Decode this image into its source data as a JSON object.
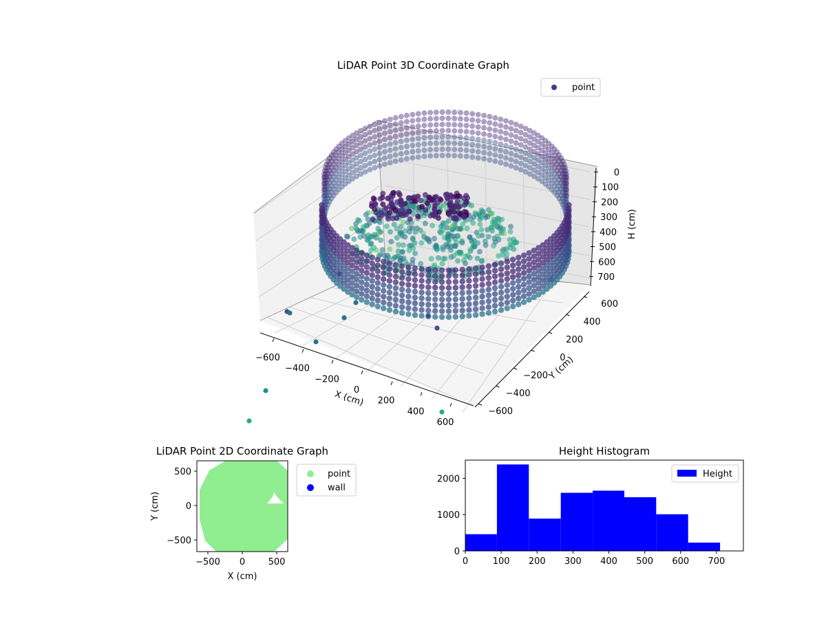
{
  "chart_data": [
    {
      "type": "scatter3d",
      "title": "LiDAR Point 3D Coordinate Graph",
      "xlabel": "X (cm)",
      "ylabel": "Y (cm)",
      "zlabel": "H (cm)",
      "xticks": [
        "−600",
        "−400",
        "−200",
        "0",
        "200",
        "400",
        "600"
      ],
      "yticks": [
        "−600",
        "−400",
        "−200",
        "0",
        "200",
        "400",
        "600"
      ],
      "zticks": [
        "0",
        "100",
        "200",
        "300",
        "400",
        "500",
        "600",
        "700"
      ],
      "xlim": [
        -650,
        650
      ],
      "ylim": [
        -650,
        650
      ],
      "zlim": [
        0,
        750
      ],
      "z_axis_inverted": true,
      "legend": [
        "point"
      ],
      "legend_position": "top-right",
      "colormap": "viridis",
      "point_color": "#443983",
      "grid": true
    },
    {
      "type": "scatter",
      "title": "LiDAR Point 2D Coordinate Graph",
      "xlabel": "X (cm)",
      "ylabel": "Y (cm)",
      "xticks": [
        "−500",
        "0",
        "500"
      ],
      "yticks": [
        "500",
        "0",
        "−500"
      ],
      "xlim": [
        -650,
        650
      ],
      "ylim": [
        -650,
        650
      ],
      "series": [
        {
          "name": "point",
          "color": "#90ee90"
        },
        {
          "name": "wall",
          "color": "#0000ff"
        }
      ],
      "legend_position": "outside-right"
    },
    {
      "type": "bar",
      "title": "Height Histogram",
      "legend": [
        "Height"
      ],
      "legend_position": "top-right",
      "color": "#0000ff",
      "xticks": [
        "0",
        "100",
        "200",
        "300",
        "400",
        "500",
        "600",
        "700"
      ],
      "yticks": [
        "0",
        "1000",
        "2000"
      ],
      "xlim": [
        0,
        775
      ],
      "ylim": [
        0,
        2500
      ],
      "bins": [
        {
          "x0": 0,
          "x1": 88,
          "count": 460
        },
        {
          "x0": 88,
          "x1": 177,
          "count": 2380
        },
        {
          "x0": 177,
          "x1": 266,
          "count": 890
        },
        {
          "x0": 266,
          "x1": 355,
          "count": 1600
        },
        {
          "x0": 355,
          "x1": 443,
          "count": 1660
        },
        {
          "x0": 443,
          "x1": 532,
          "count": 1480
        },
        {
          "x0": 532,
          "x1": 621,
          "count": 1010
        },
        {
          "x0": 621,
          "x1": 710,
          "count": 230
        }
      ]
    }
  ]
}
